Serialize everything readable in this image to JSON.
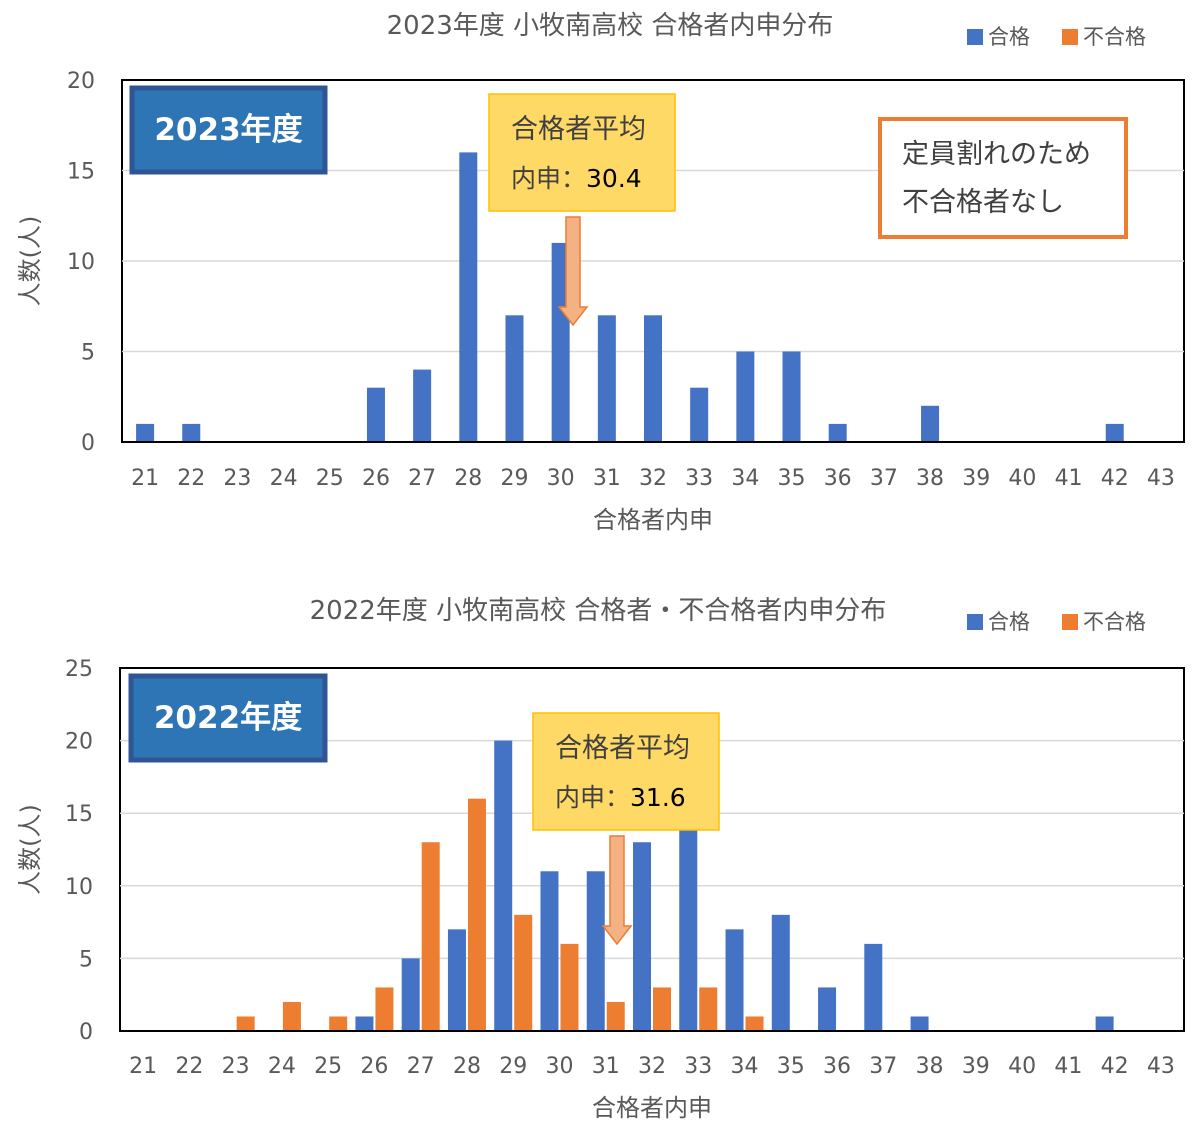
{
  "colors": {
    "pass": "#4472C4",
    "fail": "#ED7D31",
    "axis": "#000000",
    "grid": "#D9D9D9",
    "tag_fill": "#2E75B6",
    "tag_border": "#2F5597",
    "callout_fill": "#FFD966",
    "callout_border": "#FFC000",
    "arrow_fill": "#F4B183",
    "arrow_stroke": "#ED7D31",
    "note_border": "#ED7D31"
  },
  "legend": {
    "pass": "合格",
    "fail": "不合格"
  },
  "chart_data": [
    {
      "type": "bar",
      "title": "2023年度 小牧南高校 合格者内申分布",
      "xlabel": "合格者内申",
      "ylabel": "人数(人)",
      "ylim": [
        0,
        20
      ],
      "yticks": [
        "0",
        "5",
        "10",
        "15",
        "20"
      ],
      "categories": [
        "21",
        "22",
        "23",
        "24",
        "25",
        "26",
        "27",
        "28",
        "29",
        "30",
        "31",
        "32",
        "33",
        "34",
        "35",
        "36",
        "37",
        "38",
        "39",
        "40",
        "41",
        "42",
        "43"
      ],
      "series": [
        {
          "name": "合格",
          "values": [
            1,
            1,
            0,
            0,
            0,
            3,
            4,
            16,
            7,
            11,
            7,
            7,
            3,
            5,
            5,
            1,
            0,
            2,
            0,
            0,
            0,
            1,
            0
          ]
        },
        {
          "name": "不合格",
          "values": [
            0,
            0,
            0,
            0,
            0,
            0,
            0,
            0,
            0,
            0,
            0,
            0,
            0,
            0,
            0,
            0,
            0,
            0,
            0,
            0,
            0,
            0,
            0
          ]
        }
      ],
      "grid": true,
      "legend_position": "top-right",
      "year_tag": "2023年度",
      "callout": {
        "line1": "合格者平均",
        "line2_prefix": "内申：",
        "line2_value": "30.4"
      },
      "note": {
        "line1": "定員割れのため",
        "line2": "不合格者なし"
      }
    },
    {
      "type": "bar",
      "title": "2022年度 小牧南高校 合格者・不合格者内申分布",
      "xlabel": "合格者内申",
      "ylabel": "人数(人)",
      "ylim": [
        0,
        25
      ],
      "yticks": [
        "0",
        "5",
        "10",
        "15",
        "20",
        "25"
      ],
      "categories": [
        "21",
        "22",
        "23",
        "24",
        "25",
        "26",
        "27",
        "28",
        "29",
        "30",
        "31",
        "32",
        "33",
        "34",
        "35",
        "36",
        "37",
        "38",
        "39",
        "40",
        "41",
        "42",
        "43"
      ],
      "series": [
        {
          "name": "合格",
          "values": [
            0,
            0,
            0,
            0,
            0,
            1,
            5,
            7,
            20,
            11,
            11,
            13,
            14,
            7,
            8,
            3,
            6,
            1,
            0,
            0,
            0,
            1,
            0
          ]
        },
        {
          "name": "不合格",
          "values": [
            0,
            0,
            1,
            2,
            1,
            3,
            13,
            16,
            8,
            6,
            2,
            3,
            3,
            1,
            0,
            0,
            0,
            0,
            0,
            0,
            0,
            0,
            0
          ]
        }
      ],
      "grid": true,
      "legend_position": "top-right",
      "year_tag": "2022年度",
      "callout": {
        "line1": "合格者平均",
        "line2_prefix": "内申：",
        "line2_value": "31.6"
      },
      "note": null
    }
  ]
}
